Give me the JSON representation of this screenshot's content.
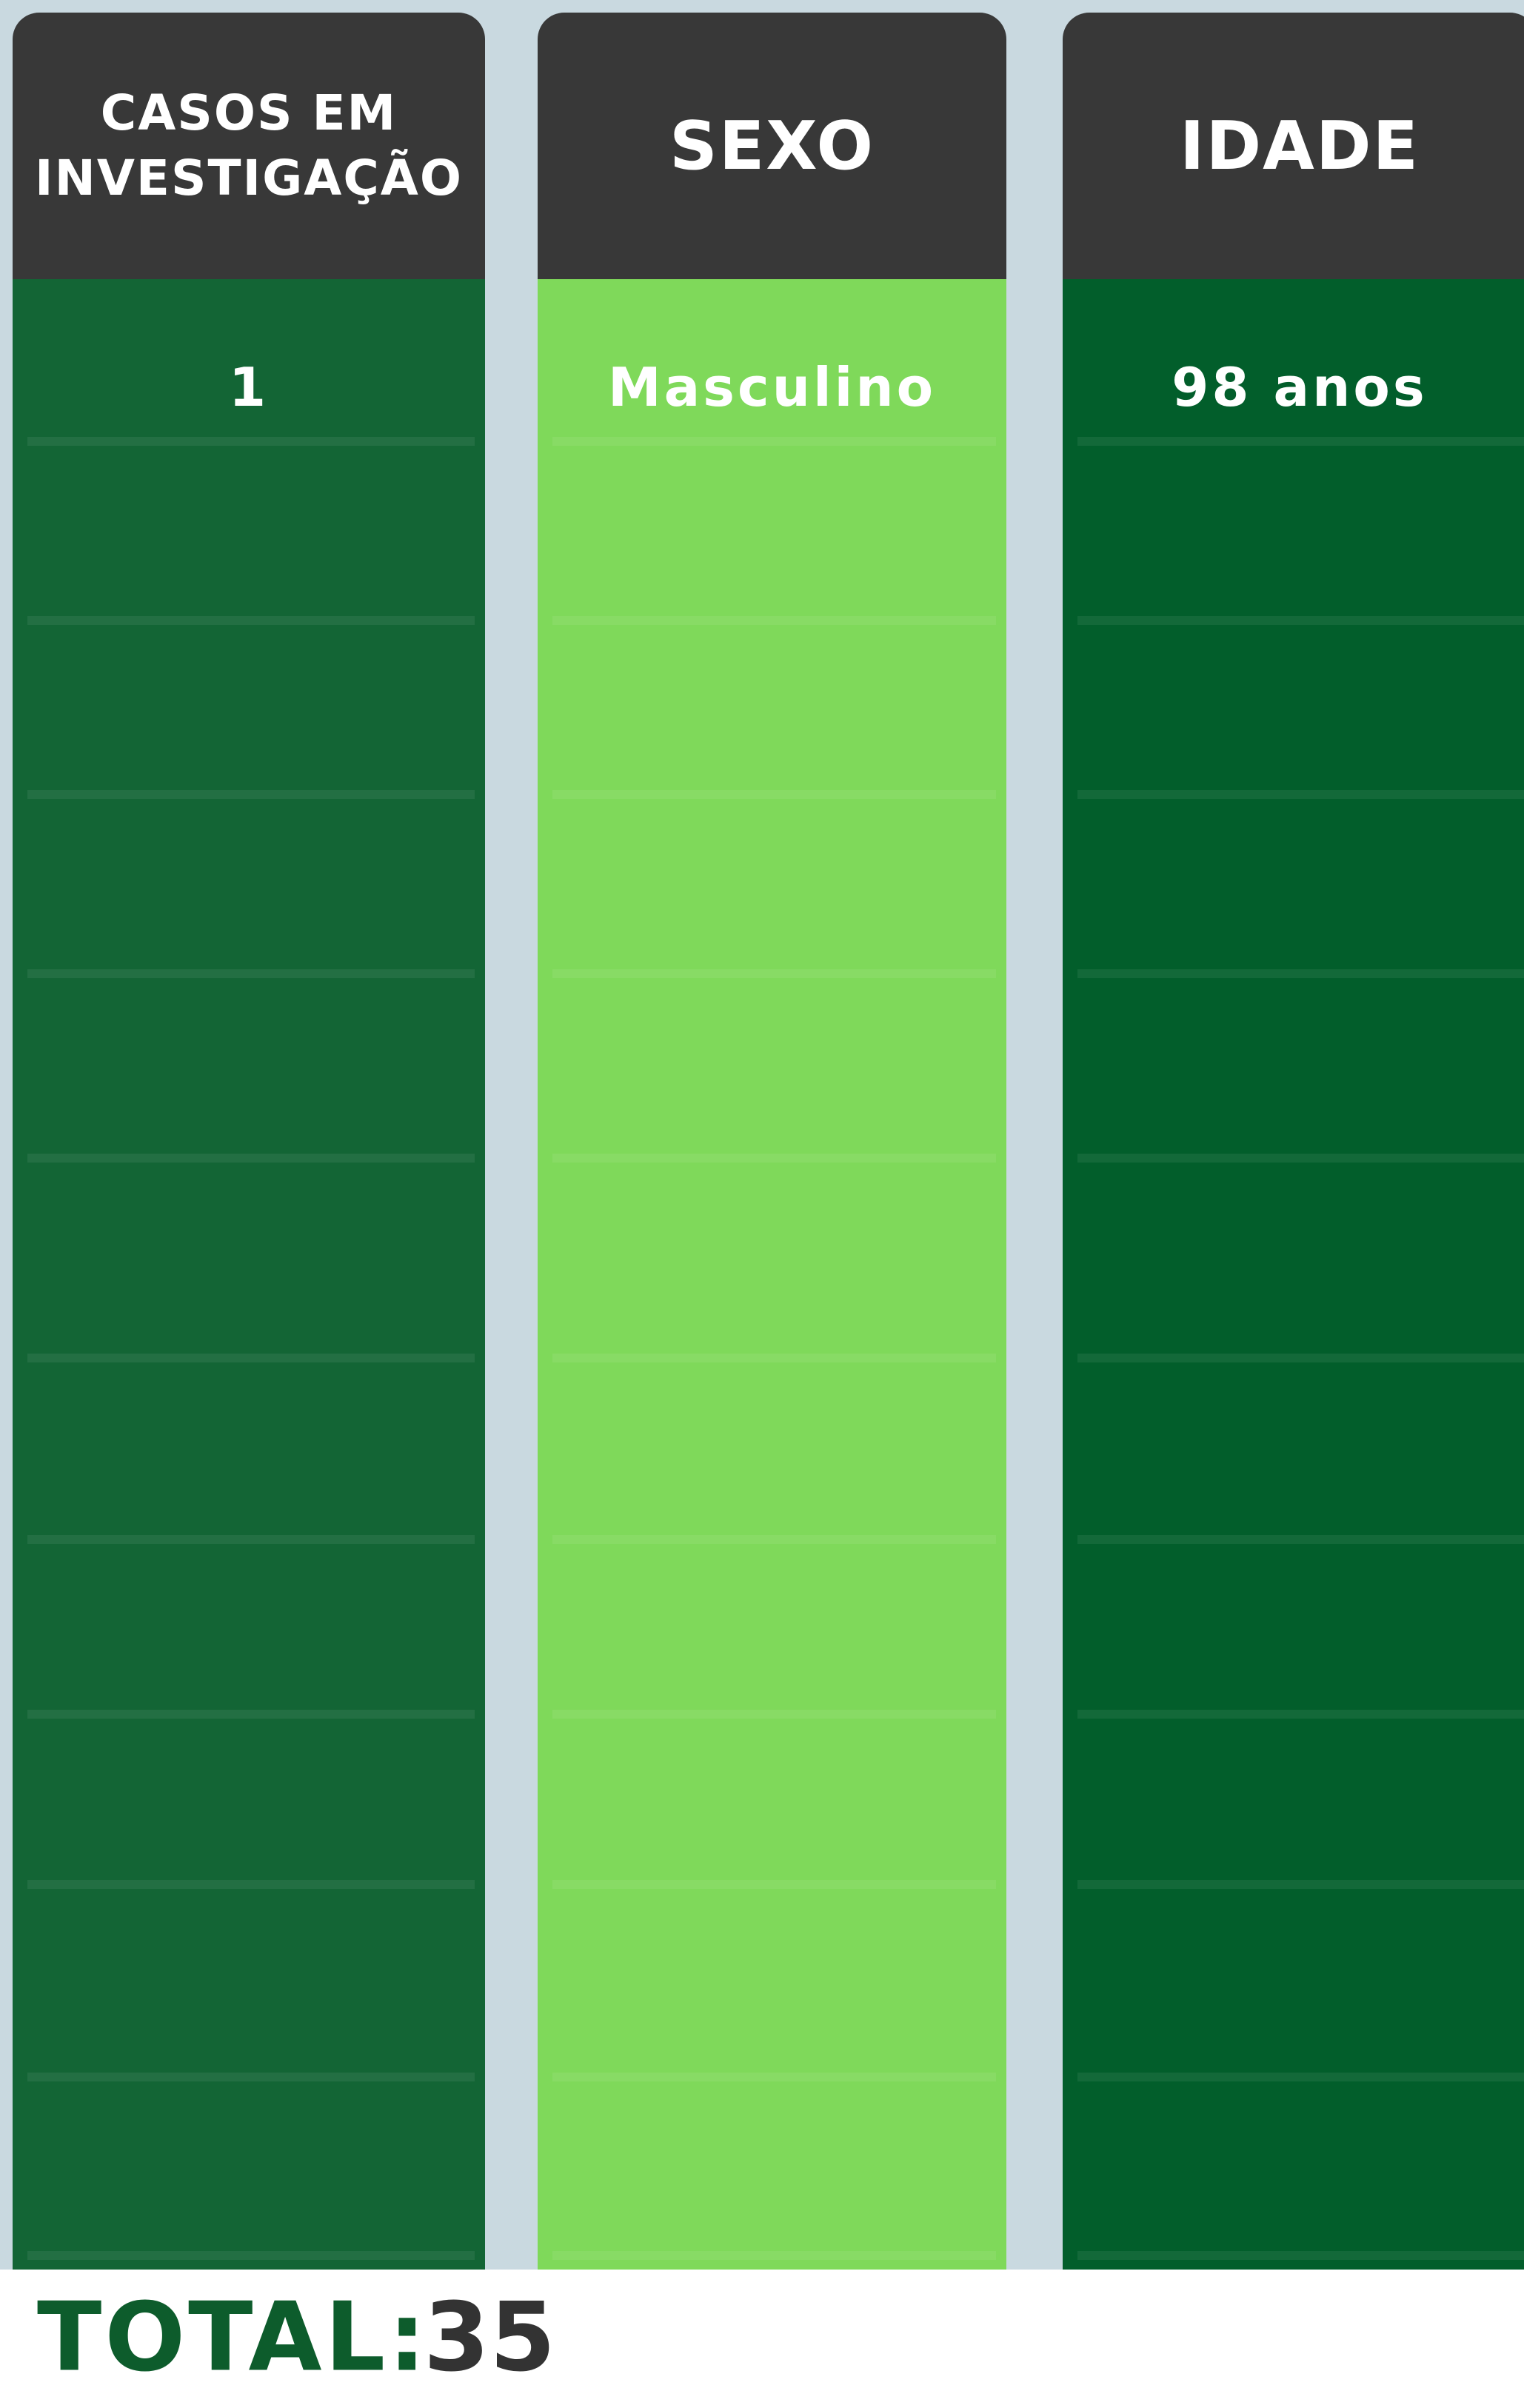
{
  "columns": [
    {
      "header": "CASOS EM INVESTIGAÇÃO",
      "cells": [
        "1"
      ]
    },
    {
      "header": "SEXO",
      "cells": [
        "Masculino"
      ]
    },
    {
      "header": "IDADE",
      "cells": [
        "98 anos"
      ]
    }
  ],
  "total": {
    "label": "TOTAL:",
    "value": "35"
  }
}
